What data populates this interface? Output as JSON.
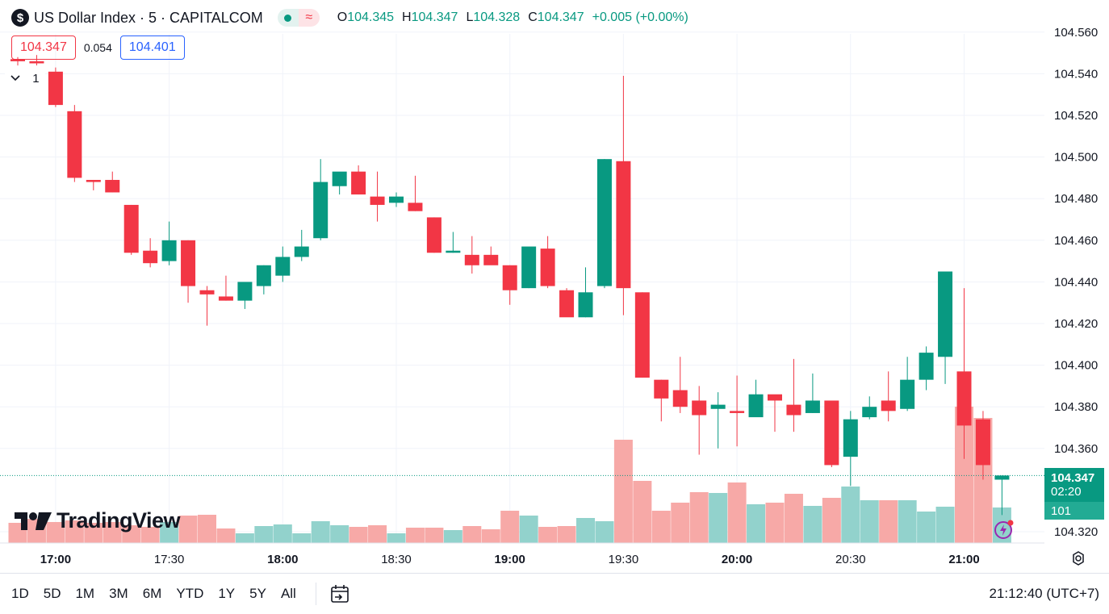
{
  "header": {
    "symbol_icon": "$",
    "title": "US Dollar Index · 5 · CAPITALCOM",
    "market_status_icon": "market-open-dot-icon",
    "wave_icon": "≈",
    "ohlc": {
      "o_label": "O",
      "o": "104.345",
      "h_label": "H",
      "h": "104.347",
      "l_label": "L",
      "l": "104.328",
      "c_label": "C",
      "c": "104.347",
      "change": "+0.005 (+0.00%)"
    }
  },
  "quote": {
    "sell": "104.347",
    "spread": "0.054",
    "buy": "104.401"
  },
  "indicator_toggle": {
    "icon": "chevron-down-icon",
    "count": "1"
  },
  "price_scale": {
    "ticks": [
      "104.560",
      "104.540",
      "104.520",
      "104.500",
      "104.480",
      "104.460",
      "104.440",
      "104.420",
      "104.400",
      "104.380",
      "104.360",
      "104.320"
    ],
    "last_price": "104.347",
    "countdown": "02:20",
    "volume_label": "101"
  },
  "time_scale": {
    "ticks": [
      {
        "label": "17:00",
        "bold": true
      },
      {
        "label": "17:30",
        "bold": false
      },
      {
        "label": "18:00",
        "bold": true
      },
      {
        "label": "18:30",
        "bold": false
      },
      {
        "label": "19:00",
        "bold": true
      },
      {
        "label": "19:30",
        "bold": false
      },
      {
        "label": "20:00",
        "bold": true
      },
      {
        "label": "20:30",
        "bold": false
      },
      {
        "label": "21:00",
        "bold": true
      }
    ]
  },
  "watermark": "TradingView",
  "bottom_toolbar": {
    "ranges": [
      "1D",
      "5D",
      "1M",
      "3M",
      "6M",
      "YTD",
      "1Y",
      "5Y",
      "All"
    ],
    "goto_icon": "calendar-goto-icon",
    "clock": "21:12:40 (UTC+7)"
  },
  "colors": {
    "up": "#089981",
    "down": "#f23645",
    "vol_up": "#92d2cc",
    "vol_down": "#f7a9a7"
  },
  "chart_data": {
    "type": "candlestick",
    "interval": "5m",
    "ylim": [
      104.312,
      104.565
    ],
    "candles": [
      {
        "o": 104.547,
        "h": 104.548,
        "l": 104.544,
        "c": 104.546,
        "v": 2.5
      },
      {
        "o": 104.546,
        "h": 104.549,
        "l": 104.544,
        "c": 104.545,
        "v": 3.0
      },
      {
        "o": 104.541,
        "h": 104.543,
        "l": 104.524,
        "c": 104.525,
        "v": 2.6
      },
      {
        "o": 104.522,
        "h": 104.525,
        "l": 104.488,
        "c": 104.49,
        "v": 2.8
      },
      {
        "o": 104.489,
        "h": 104.489,
        "l": 104.484,
        "c": 104.488,
        "v": 2.5
      },
      {
        "o": 104.489,
        "h": 104.493,
        "l": 104.483,
        "c": 104.483,
        "v": 2.6
      },
      {
        "o": 104.477,
        "h": 104.477,
        "l": 104.453,
        "c": 104.454,
        "v": 2.2
      },
      {
        "o": 104.455,
        "h": 104.461,
        "l": 104.447,
        "c": 104.449,
        "v": 2.0
      },
      {
        "o": 104.45,
        "h": 104.469,
        "l": 104.448,
        "c": 104.46,
        "v": 2.6
      },
      {
        "o": 104.46,
        "h": 104.46,
        "l": 104.43,
        "c": 104.438,
        "v": 3.4
      },
      {
        "o": 104.436,
        "h": 104.438,
        "l": 104.419,
        "c": 104.434,
        "v": 3.5
      },
      {
        "o": 104.433,
        "h": 104.443,
        "l": 104.431,
        "c": 104.431,
        "v": 1.8
      },
      {
        "o": 104.431,
        "h": 104.439,
        "l": 104.427,
        "c": 104.44,
        "v": 1.2
      },
      {
        "o": 104.438,
        "h": 104.448,
        "l": 104.434,
        "c": 104.448,
        "v": 2.1
      },
      {
        "o": 104.443,
        "h": 104.457,
        "l": 104.44,
        "c": 104.452,
        "v": 2.3
      },
      {
        "o": 104.452,
        "h": 104.465,
        "l": 104.45,
        "c": 104.457,
        "v": 1.2
      },
      {
        "o": 104.461,
        "h": 104.499,
        "l": 104.46,
        "c": 104.488,
        "v": 2.7
      },
      {
        "o": 104.486,
        "h": 104.492,
        "l": 104.482,
        "c": 104.493,
        "v": 2.2
      },
      {
        "o": 104.493,
        "h": 104.496,
        "l": 104.482,
        "c": 104.482,
        "v": 2.0
      },
      {
        "o": 104.481,
        "h": 104.493,
        "l": 104.469,
        "c": 104.477,
        "v": 2.2
      },
      {
        "o": 104.478,
        "h": 104.483,
        "l": 104.476,
        "c": 104.481,
        "v": 1.2
      },
      {
        "o": 104.478,
        "h": 104.491,
        "l": 104.474,
        "c": 104.474,
        "v": 1.9
      },
      {
        "o": 104.471,
        "h": 104.471,
        "l": 104.454,
        "c": 104.454,
        "v": 1.9
      },
      {
        "o": 104.454,
        "h": 104.464,
        "l": 104.454,
        "c": 104.455,
        "v": 1.6
      },
      {
        "o": 104.453,
        "h": 104.462,
        "l": 104.444,
        "c": 104.448,
        "v": 2.1
      },
      {
        "o": 104.453,
        "h": 104.457,
        "l": 104.449,
        "c": 104.448,
        "v": 1.7
      },
      {
        "o": 104.448,
        "h": 104.448,
        "l": 104.429,
        "c": 104.436,
        "v": 4.0
      },
      {
        "o": 104.437,
        "h": 104.456,
        "l": 104.437,
        "c": 104.457,
        "v": 3.4
      },
      {
        "o": 104.456,
        "h": 104.462,
        "l": 104.437,
        "c": 104.438,
        "v": 2.0
      },
      {
        "o": 104.436,
        "h": 104.437,
        "l": 104.424,
        "c": 104.423,
        "v": 2.1
      },
      {
        "o": 104.423,
        "h": 104.447,
        "l": 104.423,
        "c": 104.435,
        "v": 3.1
      },
      {
        "o": 104.438,
        "h": 104.499,
        "l": 104.437,
        "c": 104.499,
        "v": 2.7
      },
      {
        "o": 104.498,
        "h": 104.539,
        "l": 104.424,
        "c": 104.437,
        "v": 12.8
      },
      {
        "o": 104.435,
        "h": 104.435,
        "l": 104.394,
        "c": 104.394,
        "v": 7.7
      },
      {
        "o": 104.393,
        "h": 104.393,
        "l": 104.373,
        "c": 104.384,
        "v": 4.0
      },
      {
        "o": 104.388,
        "h": 104.404,
        "l": 104.377,
        "c": 104.38,
        "v": 5.0
      },
      {
        "o": 104.383,
        "h": 104.39,
        "l": 104.357,
        "c": 104.376,
        "v": 6.3
      },
      {
        "o": 104.379,
        "h": 104.387,
        "l": 104.36,
        "c": 104.381,
        "v": 6.2
      },
      {
        "o": 104.378,
        "h": 104.395,
        "l": 104.361,
        "c": 104.377,
        "v": 7.5
      },
      {
        "o": 104.375,
        "h": 104.393,
        "l": 104.376,
        "c": 104.386,
        "v": 4.8
      },
      {
        "o": 104.386,
        "h": 104.385,
        "l": 104.368,
        "c": 104.383,
        "v": 5.0
      },
      {
        "o": 104.381,
        "h": 104.403,
        "l": 104.368,
        "c": 104.376,
        "v": 6.1
      },
      {
        "o": 104.377,
        "h": 104.396,
        "l": 104.377,
        "c": 104.383,
        "v": 4.6
      },
      {
        "o": 104.383,
        "h": 104.381,
        "l": 104.351,
        "c": 104.352,
        "v": 5.6
      },
      {
        "o": 104.356,
        "h": 104.378,
        "l": 104.342,
        "c": 104.374,
        "v": 7.0
      },
      {
        "o": 104.375,
        "h": 104.385,
        "l": 104.374,
        "c": 104.38,
        "v": 5.3
      },
      {
        "o": 104.383,
        "h": 104.397,
        "l": 104.373,
        "c": 104.378,
        "v": 5.3
      },
      {
        "o": 104.379,
        "h": 104.404,
        "l": 104.378,
        "c": 104.393,
        "v": 5.3
      },
      {
        "o": 104.393,
        "h": 104.409,
        "l": 104.388,
        "c": 104.406,
        "v": 3.9
      },
      {
        "o": 104.404,
        "h": 104.443,
        "l": 104.391,
        "c": 104.445,
        "v": 4.5
      },
      {
        "o": 104.397,
        "h": 104.437,
        "l": 104.355,
        "c": 104.371,
        "v": 16.9
      },
      {
        "o": 104.374,
        "h": 104.378,
        "l": 104.345,
        "c": 104.352,
        "v": 15.5
      },
      {
        "o": 104.345,
        "h": 104.347,
        "l": 104.328,
        "c": 104.347,
        "v": 4.4
      }
    ]
  }
}
